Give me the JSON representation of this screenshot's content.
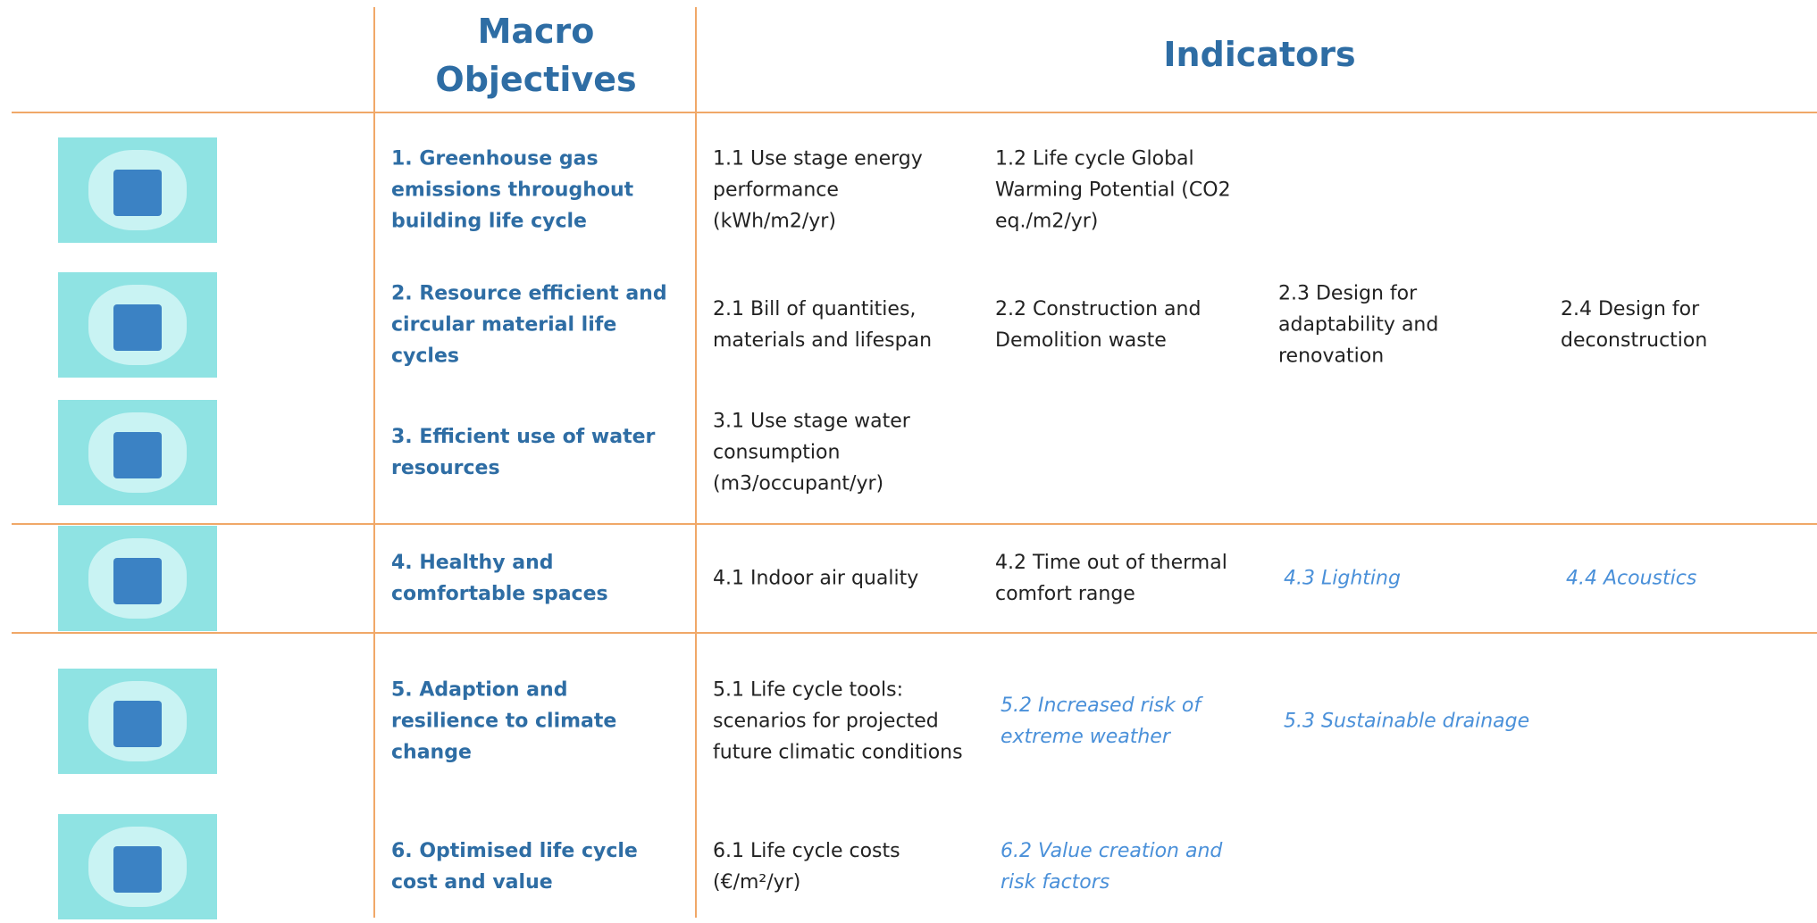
{
  "header": {
    "objectives": "Macro Objectives",
    "indicators": "Indicators"
  },
  "rows": [
    {
      "objective": "1. Greenhouse gas emissions throughout building life cycle",
      "indicators": [
        {
          "label": "1.1 Use stage energy performance (kWh/m2/yr)"
        },
        {
          "label": "1.2 Life cycle Global Warming Potential (CO2 eq./m2/yr)"
        }
      ]
    },
    {
      "objective": "2. Resource efficient and circular material life cycles",
      "indicators": [
        {
          "label": "2.1 Bill of quantities, materials and lifespan"
        },
        {
          "label": "2.2 Construction and Demolition waste"
        },
        {
          "label": "2.3 Design for adaptability and renovation"
        },
        {
          "label": "2.4 Design for deconstruction"
        }
      ]
    },
    {
      "objective": "3. Efficient use of water resources",
      "indicators": [
        {
          "label": "3.1 Use stage water consumption (m3/occupant/yr)"
        }
      ]
    },
    {
      "objective": "4. Healthy and comfortable spaces",
      "indicators": [
        {
          "label": "4.1 Indoor air quality"
        },
        {
          "label": "4.2 Time out of thermal comfort range"
        },
        {
          "label": "4.3 Lighting",
          "italic": true
        },
        {
          "label": "4.4 Acoustics",
          "italic": true
        }
      ]
    },
    {
      "objective": "5. Adaption and resilience to climate change",
      "indicators": [
        {
          "label": "5.1 Life cycle tools: scenarios for projected future climatic conditions"
        },
        {
          "label": "5.2 Increased risk of extreme weather",
          "italic": true
        },
        {
          "label": "5.3 Sustainable drainage",
          "italic": true
        }
      ]
    },
    {
      "objective": "6. Optimised life cycle cost and value",
      "indicators": [
        {
          "label": "6.1 Life cycle costs (€/m²/yr)"
        },
        {
          "label": "6.2 Value creation and risk factors",
          "italic": true
        }
      ]
    }
  ]
}
